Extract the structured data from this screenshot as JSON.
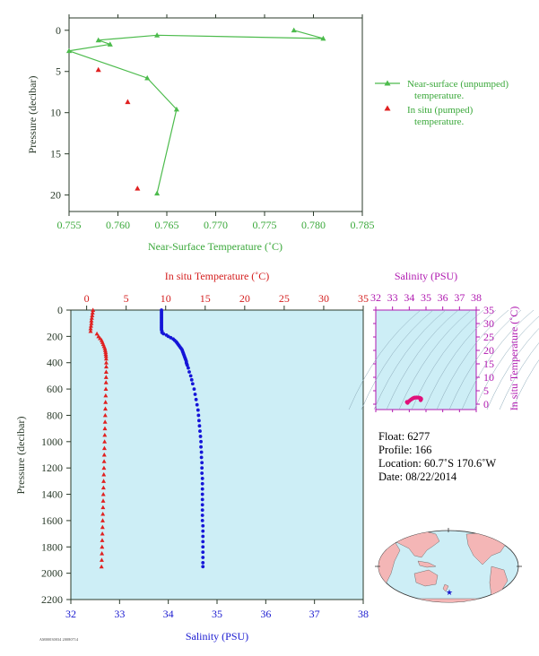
{
  "chart_data": [
    {
      "type": "scatter",
      "xlabel": "Near-Surface Temperature (˚C)",
      "ylabel": "Pressure (decibar)",
      "xlim": [
        0.755,
        0.785
      ],
      "ylim": [
        22,
        -1.5
      ],
      "xticks": [
        "0.755",
        "0.760",
        "0.765",
        "0.770",
        "0.775",
        "0.780",
        "0.785"
      ],
      "xtick_values": [
        0.755,
        0.76,
        0.765,
        0.77,
        0.775,
        0.78,
        0.785
      ],
      "yticks": [
        "0",
        "5",
        "10",
        "15",
        "20"
      ],
      "ytick_values": [
        0,
        5,
        10,
        15,
        20
      ],
      "grid": false,
      "legend_position": "right",
      "series": [
        {
          "name": "Near-surface (unpumped) temperature.",
          "legend_lines": [
            "Near-surface (unpumped)",
            "temperature."
          ],
          "color": "#4cbb4c",
          "marker": "triangle",
          "connected": true,
          "x": [
            0.778,
            0.781,
            0.764,
            0.758,
            0.7592,
            0.755,
            0.763,
            0.766,
            0.764
          ],
          "y": [
            0.0,
            1.0,
            0.6,
            1.2,
            1.7,
            2.5,
            5.8,
            9.6,
            19.8
          ]
        },
        {
          "name": "In situ (pumped) temperature.",
          "legend_lines": [
            "In situ (pumped)",
            "temperature."
          ],
          "color": "#e02020",
          "marker": "triangle",
          "connected": false,
          "x": [
            0.758,
            0.761,
            0.762
          ],
          "y": [
            4.8,
            8.7,
            19.2
          ]
        }
      ]
    },
    {
      "type": "scatter",
      "ylabel": "Pressure (decibar)",
      "ylim": [
        2200,
        0
      ],
      "yticks": [
        "0",
        "200",
        "400",
        "600",
        "800",
        "1000",
        "1200",
        "1400",
        "1600",
        "1800",
        "2000",
        "2200"
      ],
      "ytick_values": [
        0,
        200,
        400,
        600,
        800,
        1000,
        1200,
        1400,
        1600,
        1800,
        2000,
        2200
      ],
      "x_top": {
        "label": "In situ Temperature (˚C)",
        "lim": [
          -2,
          35
        ],
        "ticks": [
          "0",
          "5",
          "10",
          "15",
          "20",
          "25",
          "30",
          "35"
        ],
        "tick_values": [
          0,
          5,
          10,
          15,
          20,
          25,
          30,
          35
        ],
        "color": "#d41e1e"
      },
      "x_bottom": {
        "label": "Salinity (PSU)",
        "lim": [
          32,
          38
        ],
        "ticks": [
          "32",
          "33",
          "34",
          "35",
          "36",
          "37",
          "38"
        ],
        "tick_values": [
          32,
          33,
          34,
          35,
          36,
          37,
          38
        ],
        "color": "#1a1ad0"
      },
      "background": "#cdeef6",
      "series": [
        {
          "name": "In situ Temperature (˚C)",
          "color": "#e02020",
          "marker": "triangle",
          "axis": "top",
          "pressure": [
            0,
            20,
            40,
            60,
            80,
            100,
            120,
            140,
            160,
            180,
            200,
            215,
            230,
            245,
            260,
            275,
            290,
            305,
            320,
            335,
            350,
            370,
            400,
            430,
            470,
            510,
            550,
            600,
            650,
            700,
            750,
            800,
            850,
            900,
            950,
            1000,
            1050,
            1100,
            1150,
            1200,
            1250,
            1300,
            1350,
            1400,
            1450,
            1500,
            1550,
            1600,
            1650,
            1700,
            1750,
            1800,
            1850,
            1900,
            1950
          ],
          "values": [
            0.8,
            0.75,
            0.7,
            0.65,
            0.6,
            0.6,
            0.55,
            0.5,
            0.5,
            1.3,
            1.5,
            1.7,
            1.9,
            2.0,
            2.1,
            2.2,
            2.3,
            2.35,
            2.4,
            2.42,
            2.45,
            2.47,
            2.48,
            2.48,
            2.47,
            2.46,
            2.45,
            2.43,
            2.41,
            2.39,
            2.37,
            2.35,
            2.33,
            2.31,
            2.29,
            2.27,
            2.25,
            2.23,
            2.21,
            2.19,
            2.17,
            2.15,
            2.13,
            2.11,
            2.09,
            2.07,
            2.05,
            2.03,
            2.01,
            1.99,
            1.97,
            1.95,
            1.93,
            1.91,
            1.88
          ]
        },
        {
          "name": "Salinity (PSU)",
          "color": "#1515d8",
          "marker": "circle",
          "axis": "bottom",
          "pressure": [
            0,
            10,
            20,
            30,
            40,
            50,
            60,
            70,
            80,
            90,
            100,
            110,
            120,
            130,
            140,
            150,
            160,
            170,
            180,
            190,
            200,
            210,
            220,
            230,
            240,
            250,
            260,
            270,
            280,
            290,
            300,
            310,
            320,
            330,
            340,
            350,
            360,
            370,
            380,
            390,
            400,
            410,
            420,
            440,
            470,
            500,
            530,
            560,
            600,
            640,
            680,
            720,
            760,
            800,
            840,
            880,
            920,
            960,
            1000,
            1040,
            1080,
            1120,
            1160,
            1200,
            1240,
            1280,
            1320,
            1360,
            1400,
            1440,
            1480,
            1520,
            1560,
            1600,
            1640,
            1680,
            1720,
            1760,
            1800,
            1840,
            1880,
            1920,
            1950
          ],
          "values": [
            33.86,
            33.86,
            33.86,
            33.86,
            33.86,
            33.86,
            33.86,
            33.86,
            33.86,
            33.86,
            33.86,
            33.86,
            33.86,
            33.86,
            33.86,
            33.86,
            33.87,
            33.87,
            33.9,
            33.96,
            34.0,
            34.05,
            34.1,
            34.13,
            34.16,
            34.18,
            34.2,
            34.22,
            34.24,
            34.26,
            34.28,
            34.29,
            34.3,
            34.31,
            34.32,
            34.33,
            34.34,
            34.35,
            34.36,
            34.37,
            34.37,
            34.38,
            34.39,
            34.41,
            34.43,
            34.46,
            34.48,
            34.5,
            34.53,
            34.55,
            34.57,
            34.59,
            34.61,
            34.62,
            34.63,
            34.64,
            34.65,
            34.66,
            34.67,
            34.67,
            34.68,
            34.68,
            34.69,
            34.69,
            34.69,
            34.7,
            34.7,
            34.7,
            34.7,
            34.7,
            34.7,
            34.7,
            34.7,
            34.7,
            34.71,
            34.71,
            34.71,
            34.71,
            34.71,
            34.71,
            34.71,
            34.71,
            34.71
          ]
        }
      ]
    },
    {
      "type": "scatter",
      "title": "Salinity (PSU)",
      "ylabel": "In situ Temperature (˚C)",
      "xlim": [
        32,
        38
      ],
      "ylim": [
        -2,
        35
      ],
      "xticks": [
        "32",
        "33",
        "34",
        "35",
        "36",
        "37",
        "38"
      ],
      "xtick_values": [
        32,
        33,
        34,
        35,
        36,
        37,
        38
      ],
      "yticks": [
        "0",
        "5",
        "10",
        "15",
        "20",
        "25",
        "30",
        "35"
      ],
      "ytick_values": [
        0,
        5,
        10,
        15,
        20,
        25,
        30,
        35
      ],
      "color": "#e0117a",
      "axis_color": "#b01ab0",
      "x": [
        33.86,
        33.9,
        34.0,
        34.1,
        34.2,
        34.28,
        34.35,
        34.45,
        34.55,
        34.62,
        34.67,
        34.7,
        34.71,
        34.68
      ],
      "y": [
        0.8,
        0.5,
        1.2,
        1.7,
        2.1,
        2.35,
        2.45,
        2.48,
        2.45,
        2.35,
        2.2,
        2.05,
        1.9,
        1.5
      ]
    }
  ],
  "float_info": {
    "float": "Float:  6277",
    "profile": "Profile:  166",
    "location": "Location:  60.7˚S  170.6˚W",
    "date": "Date:  08/22/2014"
  },
  "map": {
    "ocean_color": "#cdeef6",
    "land_color": "#f4b6b6",
    "marker": "star",
    "marker_color": "#1a1acc"
  },
  "stamp": "AM00030034 20080714"
}
